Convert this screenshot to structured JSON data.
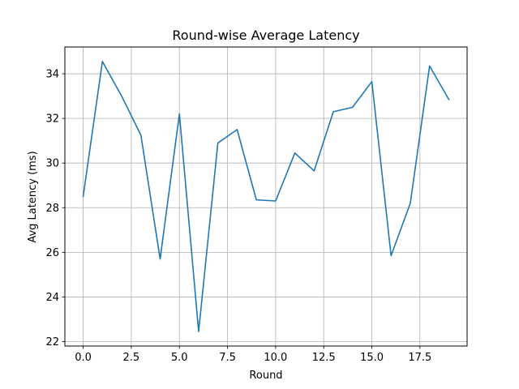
{
  "chart_data": {
    "type": "line",
    "title": "Round-wise Average Latency",
    "xlabel": "Round",
    "ylabel": "Avg Latency (ms)",
    "x": [
      0,
      1,
      2,
      3,
      4,
      5,
      6,
      7,
      8,
      9,
      10,
      11,
      12,
      13,
      14,
      15,
      16,
      17,
      18,
      19
    ],
    "series": [
      {
        "values": [
          28.5,
          34.55,
          33.0,
          31.25,
          25.7,
          32.2,
          22.45,
          30.9,
          31.5,
          28.35,
          28.3,
          30.45,
          29.65,
          32.3,
          32.5,
          33.65,
          25.85,
          28.2,
          34.35,
          32.85
        ],
        "color": "#1f77b4"
      }
    ],
    "xlim": [
      -0.95,
      19.95
    ],
    "ylim": [
      21.8,
      35.2
    ],
    "xticks": [
      0.0,
      2.5,
      5.0,
      7.5,
      10.0,
      12.5,
      15.0,
      17.5
    ],
    "xtick_labels": [
      "0.0",
      "2.5",
      "5.0",
      "7.5",
      "10.0",
      "12.5",
      "15.0",
      "17.5"
    ],
    "yticks": [
      22,
      24,
      26,
      28,
      30,
      32,
      34
    ],
    "ytick_labels": [
      "22",
      "24",
      "26",
      "28",
      "30",
      "32",
      "34"
    ],
    "grid": true,
    "grid_color": "#b0b0b0",
    "axes_color": "#000000"
  }
}
